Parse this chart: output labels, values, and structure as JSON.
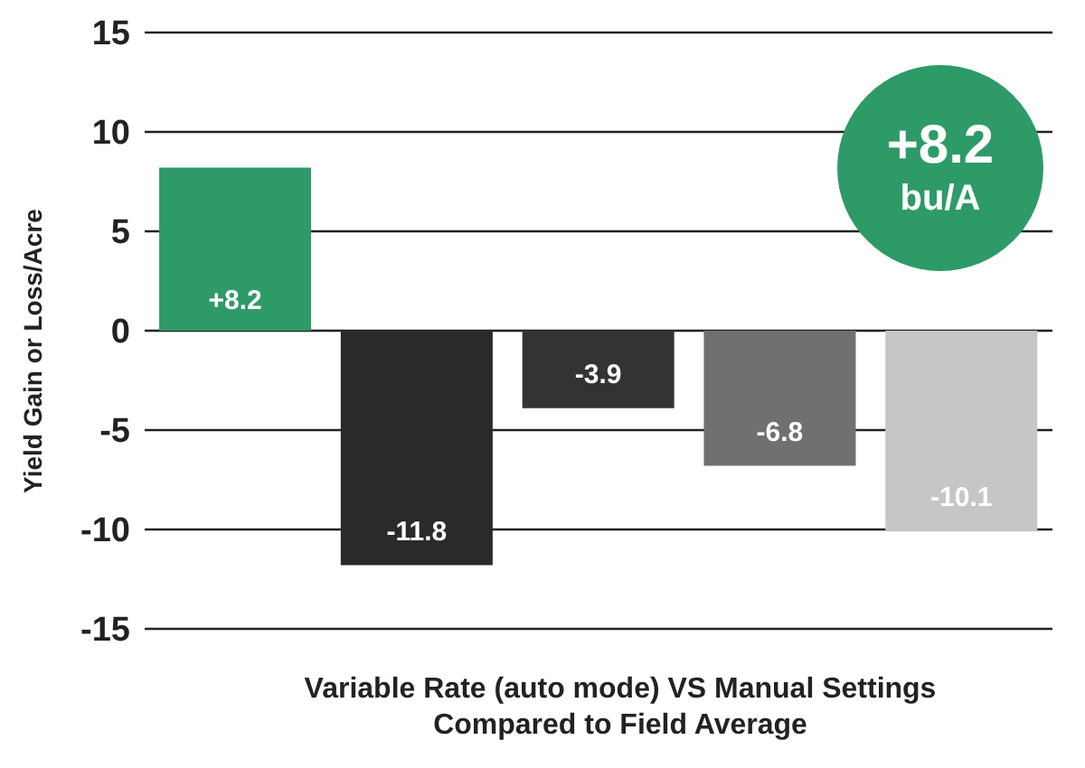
{
  "chart_data": {
    "type": "bar",
    "categories": [
      null,
      null,
      null,
      null,
      null
    ],
    "values": [
      8.2,
      -11.8,
      -3.9,
      -6.8,
      -10.1
    ],
    "colors": [
      "#2e9a68",
      "#2a2a2a",
      "#333333",
      "#707070",
      "#c6c6c6"
    ],
    "value_labels": [
      "+8.2",
      "-11.8",
      "-3.9",
      "-6.8",
      "-10.1"
    ],
    "ylabel": "Yield Gain or Loss/Acre",
    "xlabel": "Variable Rate (auto mode) VS Manual Settings Compared to Field Average",
    "ylim": [
      -15,
      15
    ],
    "yticks": [
      -15,
      -10,
      -5,
      0,
      5,
      10,
      15
    ],
    "grid": "y",
    "annotations": [
      "+8.2",
      "bu/A"
    ]
  }
}
